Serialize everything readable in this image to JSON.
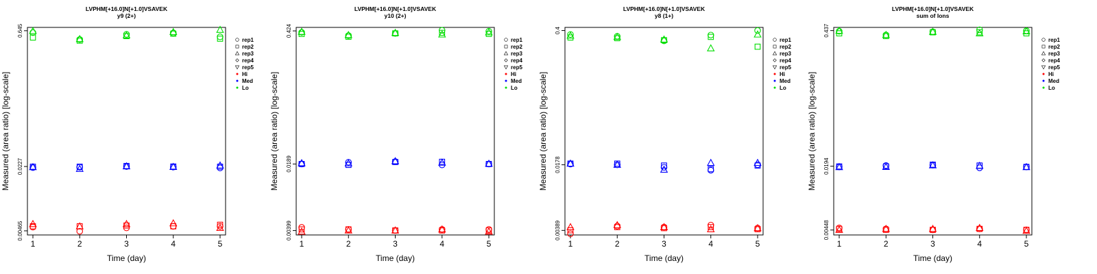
{
  "colors": {
    "Hi": "#ff0000",
    "Med": "#0000ff",
    "Lo": "#00dd00",
    "axis": "#000000"
  },
  "legend_entries": [
    {
      "label": "rep1",
      "shape": "circle"
    },
    {
      "label": "rep2",
      "shape": "square"
    },
    {
      "label": "rep3",
      "shape": "triangle-up"
    },
    {
      "label": "rep4",
      "shape": "diamond"
    },
    {
      "label": "rep5",
      "shape": "triangle-down"
    },
    {
      "label": "Hi",
      "shape": "dot",
      "color": "#ff0000"
    },
    {
      "label": "Med",
      "shape": "dot",
      "color": "#0000ff"
    },
    {
      "label": "Lo",
      "shape": "dot",
      "color": "#00dd00"
    }
  ],
  "chart_data": [
    {
      "type": "scatter",
      "title": "LVPHM[+16.0]N[+1.0]VSAVEK",
      "subtitle": "y9 (2+)",
      "xlabel": "Time (day)",
      "ylabel": "Measured (area ratio) [log-scale]",
      "x_ticks": [
        "1",
        "2",
        "3",
        "4",
        "5"
      ],
      "y_scale": "log",
      "y_ticks": [
        "0.00465",
        "0.0227",
        "0.645"
      ],
      "y_tick_values": [
        0.00465,
        0.0227,
        0.645
      ],
      "ylim": [
        0.0042,
        0.7
      ],
      "series": [
        {
          "name": "Hi",
          "color": "#ff0000",
          "points": {
            "rep1": [
              0.0051,
              0.0046,
              0.005,
              0.0052,
              0.0052
            ],
            "rep2": [
              0.0052,
              0.0052,
              0.0053,
              0.0052,
              0.0054
            ],
            "rep3": [
              0.0055,
              0.0052,
              0.0055,
              0.0056,
              0.005
            ]
          }
        },
        {
          "name": "Med",
          "color": "#0000ff",
          "points": {
            "rep1": [
              0.0221,
              0.0223,
              0.0227,
              0.0224,
              0.0219
            ],
            "rep2": [
              0.0226,
              0.0226,
              0.023,
              0.0227,
              0.0226
            ],
            "rep3": [
              0.0224,
              0.0214,
              0.0228,
              0.0225,
              0.0233
            ]
          }
        },
        {
          "name": "Lo",
          "color": "#00dd00",
          "points": {
            "rep1": [
              0.615,
              0.52,
              0.59,
              0.61,
              0.555
            ],
            "rep2": [
              0.545,
              0.505,
              0.565,
              0.6,
              0.53
            ],
            "rep3": [
              0.64,
              0.525,
              0.575,
              0.625,
              0.66
            ]
          }
        }
      ]
    },
    {
      "type": "scatter",
      "title": "LVPHM[+16.0]N[+1.0]VSAVEK",
      "subtitle": "y10 (2+)",
      "xlabel": "Time (day)",
      "ylabel": "Measured (area ratio) [log-scale]",
      "x_ticks": [
        "1",
        "2",
        "3",
        "4",
        "5"
      ],
      "y_scale": "log",
      "y_ticks": [
        "0.00399",
        "0.0189",
        "0.424"
      ],
      "y_tick_values": [
        0.00399,
        0.0189,
        0.424
      ],
      "ylim": [
        0.0036,
        0.46
      ],
      "series": [
        {
          "name": "Hi",
          "color": "#ff0000",
          "points": {
            "rep1": [
              0.0043,
              0.0041,
              0.004,
              0.0041,
              0.0041
            ],
            "rep2": [
              0.0041,
              0.0041,
              0.004,
              0.004,
              0.004
            ],
            "rep3": [
              0.0039,
              0.004,
              0.004,
              0.0041,
              0.0039
            ]
          }
        },
        {
          "name": "Med",
          "color": "#0000ff",
          "points": {
            "rep1": [
              0.0189,
              0.0197,
              0.02,
              0.0185,
              0.0189
            ],
            "rep2": [
              0.0189,
              0.0185,
              0.0198,
              0.0199,
              0.0189
            ],
            "rep3": [
              0.0193,
              0.0192,
              0.0202,
              0.0195,
              0.019
            ]
          }
        },
        {
          "name": "Lo",
          "color": "#00dd00",
          "points": {
            "rep1": [
              0.41,
              0.38,
              0.4,
              0.43,
              0.42
            ],
            "rep2": [
              0.395,
              0.37,
              0.4,
              0.405,
              0.395
            ],
            "rep3": [
              0.415,
              0.385,
              0.405,
              0.39,
              0.41
            ]
          }
        }
      ]
    },
    {
      "type": "scatter",
      "title": "LVPHM[+16.0]N[+1.0]VSAVEK",
      "subtitle": "y8 (1+)",
      "xlabel": "Time (day)",
      "ylabel": "Measured (area ratio) [log-scale]",
      "x_ticks": [
        "1",
        "2",
        "3",
        "4",
        "5"
      ],
      "y_scale": "log",
      "y_ticks": [
        "0.00389",
        "0.0178",
        "0.4"
      ],
      "y_tick_values": [
        0.00389,
        0.0178,
        0.4
      ],
      "ylim": [
        0.0035,
        0.43
      ],
      "series": [
        {
          "name": "Hi",
          "color": "#ff0000",
          "points": {
            "rep1": [
              0.0036,
              0.0043,
              0.0042,
              0.0044,
              0.0041
            ],
            "rep2": [
              0.0039,
              0.0042,
              0.0041,
              0.0042,
              0.004
            ],
            "rep3": [
              0.0042,
              0.0044,
              0.0042,
              0.004,
              0.0041
            ]
          }
        },
        {
          "name": "Med",
          "color": "#0000ff",
          "points": {
            "rep1": [
              0.0181,
              0.0178,
              0.0168,
              0.0157,
              0.0178
            ],
            "rep2": [
              0.0183,
              0.0183,
              0.0175,
              0.0161,
              0.0175
            ],
            "rep3": [
              0.0183,
              0.0178,
              0.0159,
              0.0186,
              0.0186
            ]
          }
        },
        {
          "name": "Lo",
          "color": "#00dd00",
          "points": {
            "rep1": [
              0.365,
              0.35,
              0.315,
              0.36,
              0.4
            ],
            "rep2": [
              0.34,
              0.335,
              0.32,
              0.345,
              0.275
            ],
            "rep3": [
              0.355,
              0.345,
              0.325,
              0.265,
              0.365
            ]
          }
        }
      ]
    },
    {
      "type": "scatter",
      "title": "LVPHM[+16.0]N[+1.0]VSAVEK",
      "subtitle": "sum of Ions",
      "xlabel": "Time (day)",
      "ylabel": "Measured (area ratio) [log-scale]",
      "x_ticks": [
        "1",
        "2",
        "3",
        "4",
        "5"
      ],
      "y_scale": "log",
      "y_ticks": [
        "0.00448",
        "0.0194",
        "0.437"
      ],
      "y_tick_values": [
        0.00448,
        0.0194,
        0.437
      ],
      "ylim": [
        0.004,
        0.47
      ],
      "series": [
        {
          "name": "Hi",
          "color": "#ff0000",
          "points": {
            "rep1": [
              0.0047,
              0.0046,
              0.0045,
              0.0046,
              0.0045
            ],
            "rep2": [
              0.0046,
              0.0045,
              0.0045,
              0.0046,
              0.0045
            ],
            "rep3": [
              0.0045,
              0.0046,
              0.0046,
              0.0047,
              0.0044
            ]
          }
        },
        {
          "name": "Med",
          "color": "#0000ff",
          "points": {
            "rep1": [
              0.0191,
              0.0197,
              0.0199,
              0.0187,
              0.0191
            ],
            "rep2": [
              0.0193,
              0.0193,
              0.0201,
              0.0197,
              0.0191
            ],
            "rep3": [
              0.019,
              0.0191,
              0.0198,
              0.0196,
              0.019
            ]
          }
        },
        {
          "name": "Lo",
          "color": "#00dd00",
          "points": {
            "rep1": [
              0.43,
              0.395,
              0.425,
              0.445,
              0.435
            ],
            "rep2": [
              0.41,
              0.385,
              0.42,
              0.42,
              0.41
            ],
            "rep3": [
              0.435,
              0.395,
              0.425,
              0.41,
              0.43
            ]
          }
        }
      ]
    }
  ]
}
